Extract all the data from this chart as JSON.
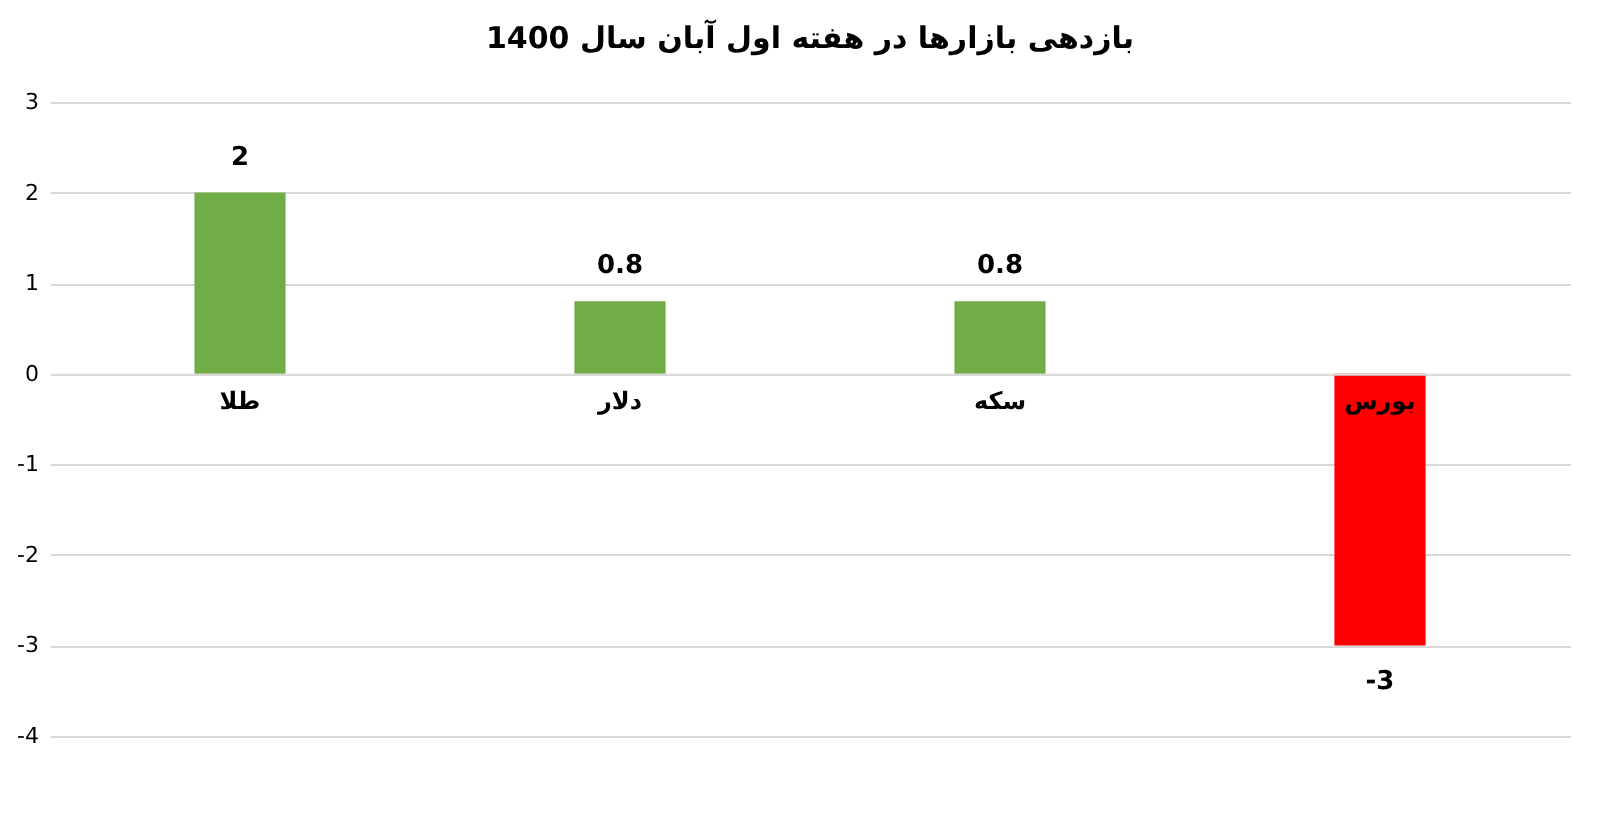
{
  "chart_data": {
    "type": "bar",
    "title": "بازدهی بازارها در هفته اول آبان سال 1400",
    "categories": [
      "طلا",
      "دلار",
      "سکه",
      "بورس"
    ],
    "values": [
      2,
      0.8,
      0.8,
      -3
    ],
    "colors": [
      "#70ad47",
      "#70ad47",
      "#70ad47",
      "#ff0000"
    ],
    "ylim": [
      -4,
      3
    ],
    "yticks": [
      -4,
      -3,
      -2,
      -1,
      0,
      1,
      2,
      3
    ],
    "grid": "y",
    "data_labels": true
  }
}
